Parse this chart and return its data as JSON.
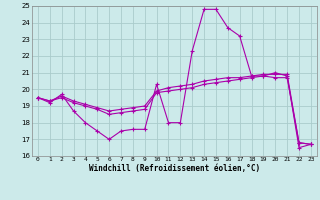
{
  "title": "",
  "xlabel": "Windchill (Refroidissement éolien,°C)",
  "ylabel": "",
  "background_color": "#cceaea",
  "grid_color": "#aacccc",
  "line_color": "#aa00aa",
  "xlim": [
    -0.5,
    23.5
  ],
  "ylim": [
    16,
    25
  ],
  "yticks": [
    16,
    17,
    18,
    19,
    20,
    21,
    22,
    23,
    24,
    25
  ],
  "xticks": [
    0,
    1,
    2,
    3,
    4,
    5,
    6,
    7,
    8,
    9,
    10,
    11,
    12,
    13,
    14,
    15,
    16,
    17,
    18,
    19,
    20,
    21,
    22,
    23
  ],
  "hours": [
    0,
    1,
    2,
    3,
    4,
    5,
    6,
    7,
    8,
    9,
    10,
    11,
    12,
    13,
    14,
    15,
    16,
    17,
    18,
    19,
    20,
    21,
    22,
    23
  ],
  "line1": [
    19.5,
    19.2,
    19.7,
    18.7,
    18.0,
    17.5,
    17.0,
    17.5,
    17.6,
    17.6,
    20.3,
    18.0,
    18.0,
    22.3,
    24.8,
    24.8,
    23.7,
    23.2,
    20.8,
    20.8,
    21.0,
    20.8,
    16.5,
    16.7
  ],
  "line2": [
    19.5,
    19.3,
    19.5,
    19.2,
    19.0,
    18.8,
    18.5,
    18.6,
    18.7,
    18.8,
    19.8,
    19.9,
    20.0,
    20.1,
    20.3,
    20.4,
    20.5,
    20.6,
    20.7,
    20.8,
    20.7,
    20.7,
    16.8,
    16.7
  ],
  "line3": [
    19.5,
    19.3,
    19.6,
    19.3,
    19.1,
    18.9,
    18.7,
    18.8,
    18.9,
    19.0,
    19.9,
    20.1,
    20.2,
    20.3,
    20.5,
    20.6,
    20.7,
    20.7,
    20.8,
    20.9,
    20.9,
    20.9,
    16.8,
    16.7
  ]
}
